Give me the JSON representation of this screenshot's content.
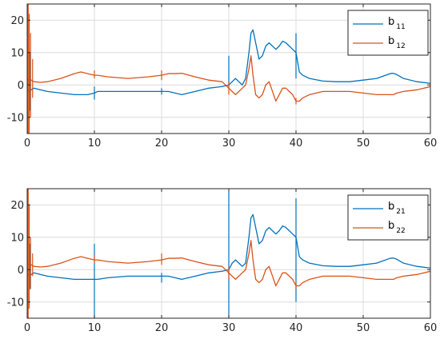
{
  "chart_data": [
    {
      "type": "line",
      "title": "",
      "xlabel": "",
      "ylabel": "",
      "xlim": [
        0,
        60
      ],
      "ylim": [
        -15,
        25
      ],
      "xticks": [
        0,
        10,
        20,
        30,
        40,
        50,
        60
      ],
      "yticks": [
        -10,
        0,
        10,
        20
      ],
      "xtick_labels": [
        "0",
        "10",
        "20",
        "30",
        "40",
        "50",
        "60"
      ],
      "ytick_labels": [
        "-10",
        "0",
        "10",
        "20"
      ],
      "grid": true,
      "legend_position": "top-right",
      "series": [
        {
          "name_main": "b",
          "name_sub": "11",
          "color": "#0072BD",
          "x": [
            0,
            0.3,
            0.6,
            1,
            2,
            3,
            5,
            7,
            8,
            9,
            10,
            10.5,
            12,
            15,
            18,
            20,
            21,
            22,
            23,
            25,
            27,
            29,
            30,
            30.5,
            31,
            31.5,
            32,
            32.5,
            33,
            33.3,
            33.6,
            34,
            34.5,
            35,
            35.5,
            36,
            36.5,
            37,
            37.5,
            38,
            38.5,
            39,
            39.5,
            40,
            40.5,
            41,
            42,
            44,
            46,
            48,
            50,
            52,
            54,
            54.5,
            55,
            56,
            58,
            60
          ],
          "y": [
            -1,
            -2,
            -1.5,
            -1,
            -1.5,
            -2,
            -2.5,
            -3,
            -3,
            -3,
            -2.5,
            -2,
            -2,
            -2,
            -2,
            -2,
            -2,
            -2.5,
            -3,
            -2,
            -1,
            -0.5,
            0,
            1,
            2,
            1,
            0,
            2,
            10,
            16,
            17,
            13,
            8,
            9,
            12,
            13,
            12,
            11,
            12,
            13.5,
            13,
            12,
            11,
            10,
            4,
            3,
            2,
            1.2,
            1,
            1,
            1.5,
            2,
            3.5,
            3.6,
            3.2,
            2,
            1,
            0.5
          ],
          "spikes": [
            {
              "x": 0.05,
              "low": -15,
              "high": 25
            },
            {
              "x": 0.4,
              "low": -8,
              "high": 10
            },
            {
              "x": 10,
              "low": -4.5,
              "high": -0.5
            },
            {
              "x": 20,
              "low": -3,
              "high": -1
            },
            {
              "x": 30,
              "low": -1,
              "high": 9
            },
            {
              "x": 40,
              "low": 2,
              "high": 16
            }
          ]
        },
        {
          "name_main": "b",
          "name_sub": "12",
          "color": "#D95319",
          "x": [
            0,
            0.3,
            0.6,
            1,
            2,
            3,
            5,
            7,
            8,
            9,
            10,
            10.5,
            12,
            15,
            18,
            20,
            21,
            22,
            23,
            25,
            27,
            29,
            30,
            30.5,
            31,
            31.5,
            32,
            32.5,
            33,
            33.3,
            33.6,
            34,
            34.5,
            35,
            35.5,
            36,
            36.5,
            37,
            37.5,
            38,
            38.5,
            39,
            39.5,
            40,
            40.5,
            41,
            42,
            44,
            46,
            48,
            50,
            52,
            54,
            54.5,
            55,
            56,
            58,
            60
          ],
          "y": [
            1,
            2,
            1.5,
            1,
            0.8,
            1,
            2,
            3.5,
            4,
            3.5,
            3,
            3,
            2.5,
            2,
            2.5,
            3,
            3.5,
            3.5,
            3.6,
            2.5,
            1.5,
            1,
            -1,
            -2,
            -3,
            -2,
            -1,
            0,
            5,
            9,
            3,
            -3,
            -4,
            -3,
            0,
            1,
            -2,
            -5,
            -3,
            -1,
            -1,
            -2,
            -3,
            -5,
            -5,
            -4,
            -3,
            -2,
            -2,
            -2,
            -2.5,
            -3,
            -3,
            -3,
            -2.5,
            -2,
            -1.5,
            -0.5
          ],
          "spikes": [
            {
              "x": 0.05,
              "low": -15,
              "high": 25
            },
            {
              "x": 0.15,
              "low": -15,
              "high": 25
            },
            {
              "x": 0.3,
              "low": -15,
              "high": 22
            },
            {
              "x": 0.5,
              "low": -10,
              "high": 16
            },
            {
              "x": 0.8,
              "low": -4,
              "high": 8
            },
            {
              "x": 10,
              "low": 2,
              "high": 4.5
            },
            {
              "x": 20,
              "low": 1.5,
              "high": 4.5
            },
            {
              "x": 30,
              "low": -3,
              "high": 1
            },
            {
              "x": 40,
              "low": -6,
              "high": -4
            }
          ]
        }
      ]
    },
    {
      "type": "line",
      "title": "",
      "xlabel": "",
      "ylabel": "",
      "xlim": [
        0,
        60
      ],
      "ylim": [
        -15,
        25
      ],
      "xticks": [
        0,
        10,
        20,
        30,
        40,
        50,
        60
      ],
      "yticks": [
        -10,
        0,
        10,
        20
      ],
      "xtick_labels": [
        "0",
        "10",
        "20",
        "30",
        "40",
        "50",
        "60"
      ],
      "ytick_labels": [
        "-10",
        "0",
        "10",
        "20"
      ],
      "grid": true,
      "legend_position": "top-right",
      "series": [
        {
          "name_main": "b",
          "name_sub": "21",
          "color": "#0072BD",
          "x": [
            0,
            0.3,
            0.6,
            1,
            2,
            3,
            5,
            7,
            8,
            9,
            10,
            10.5,
            12,
            15,
            18,
            20,
            21,
            22,
            23,
            25,
            27,
            29,
            30,
            30.5,
            31,
            31.5,
            32,
            32.5,
            33,
            33.3,
            33.6,
            34,
            34.5,
            35,
            35.5,
            36,
            36.5,
            37,
            37.5,
            38,
            38.5,
            39,
            39.5,
            40,
            40.5,
            41,
            42,
            44,
            46,
            48,
            50,
            52,
            54,
            54.5,
            55,
            56,
            58,
            60
          ],
          "y": [
            -1,
            -2,
            -1.5,
            -1,
            -1.5,
            -2,
            -2.5,
            -3,
            -3,
            -3,
            -3,
            -3,
            -2.5,
            -2,
            -2,
            -2,
            -2,
            -2.5,
            -3,
            -2,
            -1,
            -0.5,
            0,
            2,
            3,
            2,
            1,
            2,
            10,
            16,
            17,
            13,
            8,
            9,
            12,
            13,
            12,
            11,
            12,
            13.5,
            13,
            12,
            11,
            10,
            4,
            3,
            2,
            1.2,
            1,
            1,
            1.5,
            2,
            3.5,
            3.6,
            3.2,
            2,
            1,
            0.5
          ],
          "spikes": [
            {
              "x": 0.05,
              "low": -15,
              "high": 25
            },
            {
              "x": 0.4,
              "low": -6,
              "high": 8
            },
            {
              "x": 10,
              "low": -15,
              "high": 8
            },
            {
              "x": 20,
              "low": -4,
              "high": -1
            },
            {
              "x": 30,
              "low": -15,
              "high": 24
            },
            {
              "x": 40,
              "low": -10,
              "high": 22
            }
          ]
        },
        {
          "name_main": "b",
          "name_sub": "22",
          "color": "#D95319",
          "x": [
            0,
            0.3,
            0.6,
            1,
            2,
            3,
            5,
            7,
            8,
            9,
            10,
            10.5,
            12,
            15,
            18,
            20,
            21,
            22,
            23,
            25,
            27,
            29,
            30,
            30.5,
            31,
            31.5,
            32,
            32.5,
            33,
            33.3,
            33.6,
            34,
            34.5,
            35,
            35.5,
            36,
            36.5,
            37,
            37.5,
            38,
            38.5,
            39,
            39.5,
            40,
            40.5,
            41,
            42,
            44,
            46,
            48,
            50,
            52,
            54,
            54.5,
            55,
            56,
            58,
            60
          ],
          "y": [
            1,
            2,
            1.5,
            1,
            0.8,
            1,
            2,
            3.5,
            4,
            3.5,
            3,
            3,
            2.5,
            2,
            2.5,
            3,
            3.5,
            3.5,
            3.6,
            2.5,
            1.5,
            1,
            -1,
            -2,
            -3,
            -2,
            -1,
            0,
            5,
            9,
            3,
            -3,
            -4,
            -3,
            0,
            1,
            -2,
            -5,
            -3,
            -1,
            -1,
            -2,
            -3,
            -5,
            -5,
            -4,
            -3,
            -2,
            -2,
            -2,
            -2.5,
            -3,
            -3,
            -3,
            -2.5,
            -2,
            -1.5,
            -0.5
          ],
          "spikes": [
            {
              "x": 0.05,
              "low": -15,
              "high": 25
            },
            {
              "x": 0.15,
              "low": -15,
              "high": 25
            },
            {
              "x": 0.3,
              "low": -12,
              "high": 20
            },
            {
              "x": 0.5,
              "low": -6,
              "high": 10
            },
            {
              "x": 0.8,
              "low": -2,
              "high": 5
            },
            {
              "x": 10,
              "low": 2,
              "high": 4.5
            },
            {
              "x": 20,
              "low": 1.5,
              "high": 5
            },
            {
              "x": 30,
              "low": -3,
              "high": 1
            },
            {
              "x": 40,
              "low": -6,
              "high": -4
            }
          ]
        }
      ]
    }
  ]
}
